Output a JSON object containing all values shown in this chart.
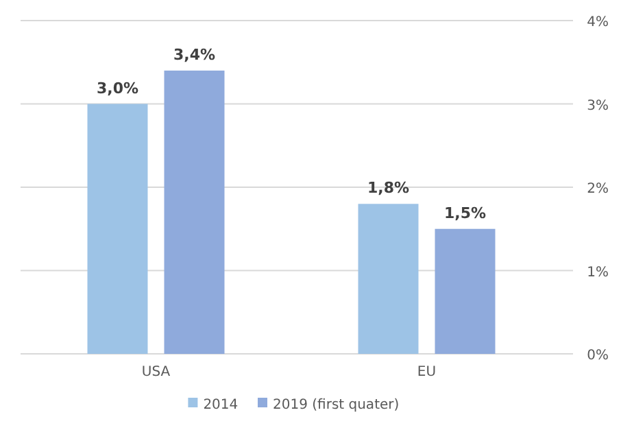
{
  "chart_data": {
    "type": "bar",
    "categories": [
      "USA",
      "EU"
    ],
    "series": [
      {
        "name": "2014",
        "color": "#9dc3e6",
        "values": [
          3.0,
          1.8
        ],
        "value_labels": [
          "3,0%",
          "1,8%"
        ]
      },
      {
        "name": "2019 (first quater)",
        "color": "#8faadc",
        "values": [
          3.4,
          1.5
        ],
        "value_labels": [
          "3,4%",
          "1,5%"
        ]
      }
    ],
    "ylim": [
      0,
      4
    ],
    "yticks": [
      {
        "value": 0,
        "label": "0%"
      },
      {
        "value": 1,
        "label": "1%"
      },
      {
        "value": 2,
        "label": "2%"
      },
      {
        "value": 3,
        "label": "3%"
      },
      {
        "value": 4,
        "label": "4%"
      }
    ],
    "grid": "y",
    "legend": "bottom"
  }
}
